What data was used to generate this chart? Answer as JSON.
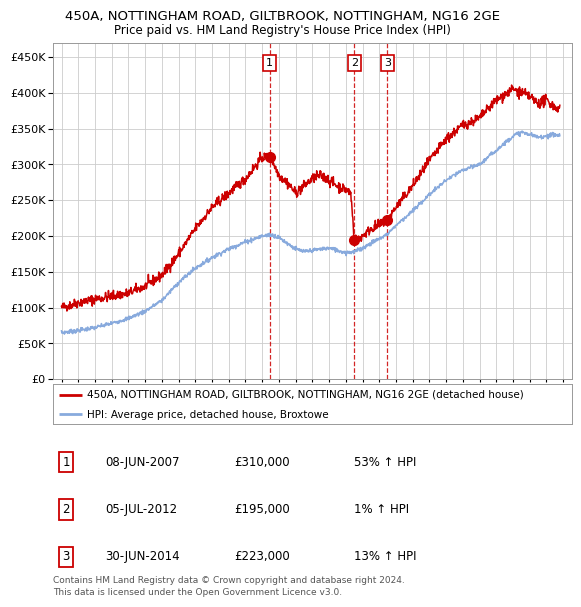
{
  "title": "450A, NOTTINGHAM ROAD, GILTBROOK, NOTTINGHAM, NG16 2GE",
  "subtitle": "Price paid vs. HM Land Registry's House Price Index (HPI)",
  "legend_line1": "450A, NOTTINGHAM ROAD, GILTBROOK, NOTTINGHAM, NG16 2GE (detached house)",
  "legend_line2": "HPI: Average price, detached house, Broxtowe",
  "footer1": "Contains HM Land Registry data © Crown copyright and database right 2024.",
  "footer2": "This data is licensed under the Open Government Licence v3.0.",
  "transactions": [
    {
      "num": "1",
      "date": "08-JUN-2007",
      "price": "£310,000",
      "hpi": "53% ↑ HPI"
    },
    {
      "num": "2",
      "date": "05-JUL-2012",
      "price": "£195,000",
      "hpi": "1% ↑ HPI"
    },
    {
      "num": "3",
      "date": "30-JUN-2014",
      "price": "£223,000",
      "hpi": "13% ↑ HPI"
    }
  ],
  "transaction_dates": [
    2007.44,
    2012.51,
    2014.49
  ],
  "transaction_prices": [
    310000,
    195000,
    223000
  ],
  "red_line_color": "#cc0000",
  "blue_line_color": "#88aadd",
  "marker_color": "#cc0000",
  "vline_color": "#cc0000",
  "ylim": [
    0,
    470000
  ],
  "yticks": [
    0,
    50000,
    100000,
    150000,
    200000,
    250000,
    300000,
    350000,
    400000,
    450000
  ],
  "background_color": "#ffffff",
  "grid_color": "#cccccc",
  "title_fontsize": 9.5,
  "subtitle_fontsize": 8.5
}
